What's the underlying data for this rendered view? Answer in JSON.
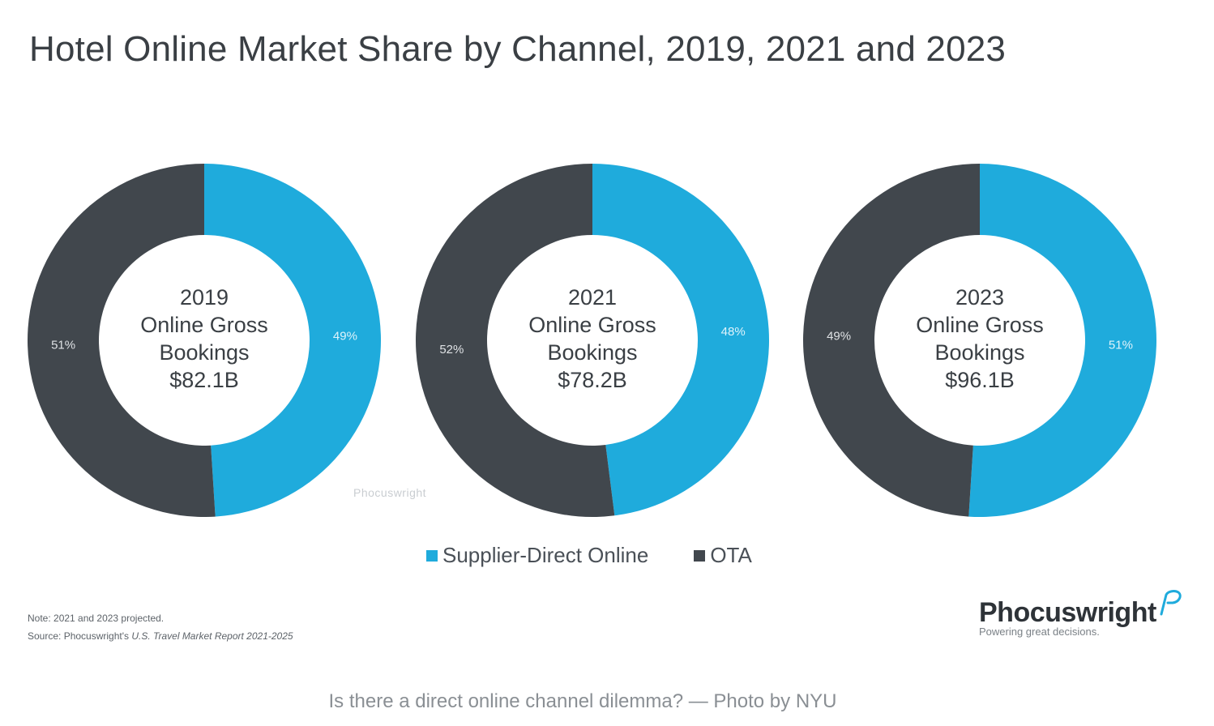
{
  "page": {
    "caption": "Is there a direct online channel dilemma? — Photo by NYU"
  },
  "figure": {
    "watermark": "Phocuswright",
    "notes": {
      "note": "Note: 2021 and 2023 projected.",
      "source_prefix": "Source: Phocuswright's ",
      "source_title": "U.S. Travel Market Report 2021-2025"
    },
    "brand": {
      "name": "Phocuswright",
      "tagline": "Powering great decisions."
    }
  },
  "chart_data": {
    "type": "pie",
    "title": "Hotel Online Market Share by Channel, 2019, 2021 and 2023",
    "legend": [
      "Supplier-Direct Online",
      "OTA"
    ],
    "legend_placement": "bottom",
    "colors": {
      "Supplier-Direct Online": "#1fabdc",
      "OTA": "#41474d"
    },
    "charts": [
      {
        "year": "2019",
        "center_label": "Online Gross",
        "center_label_2": "Bookings",
        "total": "$82.1B",
        "slices": [
          {
            "name": "Supplier-Direct Online",
            "value": 49,
            "label": "49%"
          },
          {
            "name": "OTA",
            "value": 51,
            "label": "51%"
          }
        ]
      },
      {
        "year": "2021",
        "center_label": "Online Gross",
        "center_label_2": "Bookings",
        "total": "$78.2B",
        "slices": [
          {
            "name": "Supplier-Direct Online",
            "value": 48,
            "label": "48%"
          },
          {
            "name": "OTA",
            "value": 52,
            "label": "52%"
          }
        ]
      },
      {
        "year": "2023",
        "center_label": "Online Gross",
        "center_label_2": "Bookings",
        "total": "$96.1B",
        "slices": [
          {
            "name": "Supplier-Direct Online",
            "value": 51,
            "label": "51%"
          },
          {
            "name": "OTA",
            "value": 49,
            "label": "49%"
          }
        ]
      }
    ]
  }
}
